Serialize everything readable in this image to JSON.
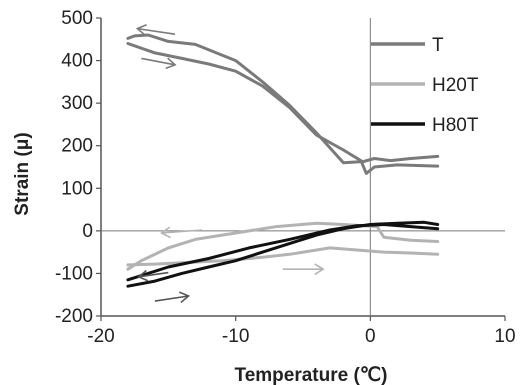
{
  "chart_data": {
    "type": "line",
    "title": "",
    "xlabel": "Temperature (℃)",
    "ylabel": "Strain (μ)",
    "xlim": [
      -20,
      10
    ],
    "ylim": [
      -200,
      500
    ],
    "x_ticks": [
      "-20",
      "-10",
      "0",
      "10"
    ],
    "y_ticks": [
      "-200",
      "-100",
      "0",
      "100",
      "200",
      "300",
      "400",
      "500"
    ],
    "grid": false,
    "legend_position": "top-right",
    "series": [
      {
        "name": "T",
        "color": "#7a7a7a",
        "cooling": [
          [
            5,
            175
          ],
          [
            3,
            170
          ],
          [
            1.5,
            165
          ],
          [
            0.3,
            170
          ],
          [
            -0.5,
            163
          ],
          [
            -2,
            160
          ],
          [
            -4,
            230
          ],
          [
            -6,
            295
          ],
          [
            -8,
            350
          ],
          [
            -10,
            400
          ],
          [
            -13,
            438
          ],
          [
            -15,
            445
          ],
          [
            -16.5,
            460
          ],
          [
            -17.5,
            458
          ],
          [
            -18,
            452
          ]
        ],
        "warming": [
          [
            -18,
            440
          ],
          [
            -16,
            418
          ],
          [
            -14,
            405
          ],
          [
            -12,
            392
          ],
          [
            -10,
            375
          ],
          [
            -8,
            340
          ],
          [
            -6,
            290
          ],
          [
            -4,
            225
          ],
          [
            -2,
            190
          ],
          [
            -0.7,
            165
          ],
          [
            -0.3,
            135
          ],
          [
            0.3,
            150
          ],
          [
            2,
            155
          ],
          [
            5,
            152
          ]
        ]
      },
      {
        "name": "H20T",
        "color": "#b3b3b3",
        "cooling": [
          [
            5,
            -25
          ],
          [
            3,
            -22
          ],
          [
            1,
            -15
          ],
          [
            0.5,
            10
          ],
          [
            -2,
            15
          ],
          [
            -4,
            18
          ],
          [
            -7,
            10
          ],
          [
            -10,
            -5
          ],
          [
            -13,
            -20
          ],
          [
            -15,
            -40
          ],
          [
            -17,
            -70
          ],
          [
            -18,
            -90
          ]
        ],
        "warming": [
          [
            -18,
            -80
          ],
          [
            -16,
            -78
          ],
          [
            -14,
            -75
          ],
          [
            -11,
            -70
          ],
          [
            -8,
            -62
          ],
          [
            -6,
            -55
          ],
          [
            -3,
            -40
          ],
          [
            -1,
            -45
          ],
          [
            1,
            -50
          ],
          [
            3,
            -52
          ],
          [
            5,
            -55
          ]
        ]
      },
      {
        "name": "H80T",
        "color": "#111111",
        "cooling": [
          [
            5,
            5
          ],
          [
            3,
            10
          ],
          [
            1,
            15
          ],
          [
            -1,
            12
          ],
          [
            -3,
            2
          ],
          [
            -6,
            -20
          ],
          [
            -9,
            -40
          ],
          [
            -12,
            -65
          ],
          [
            -15,
            -85
          ],
          [
            -17,
            -105
          ],
          [
            -18,
            -115
          ]
        ],
        "warming": [
          [
            -18,
            -130
          ],
          [
            -16,
            -118
          ],
          [
            -14,
            -100
          ],
          [
            -12,
            -85
          ],
          [
            -10,
            -70
          ],
          [
            -8,
            -50
          ],
          [
            -6,
            -30
          ],
          [
            -4,
            -10
          ],
          [
            -2,
            5
          ],
          [
            0,
            15
          ],
          [
            2,
            18
          ],
          [
            4,
            20
          ],
          [
            5,
            15
          ]
        ]
      }
    ],
    "annotations": [
      {
        "type": "arrow",
        "direction": "cooling",
        "color": "#7a7a7a",
        "from": [
          -14.5,
          462
        ],
        "to": [
          -17.3,
          475
        ]
      },
      {
        "type": "arrow",
        "direction": "warming",
        "color": "#7a7a7a",
        "from": [
          -17,
          405
        ],
        "to": [
          -14.5,
          390
        ]
      },
      {
        "type": "arrow",
        "direction": "cooling",
        "color": "#b3b3b3",
        "from": [
          -12.5,
          2
        ],
        "to": [
          -15.5,
          -5
        ]
      },
      {
        "type": "arrow",
        "direction": "warming",
        "color": "#b3b3b3",
        "from": [
          -6.5,
          -90
        ],
        "to": [
          -3.5,
          -90
        ]
      },
      {
        "type": "arrow",
        "direction": "cooling",
        "color": "#555555",
        "from": [
          -15,
          -98
        ],
        "to": [
          -17.2,
          -108
        ]
      },
      {
        "type": "arrow",
        "direction": "warming",
        "color": "#555555",
        "from": [
          -16,
          -165
        ],
        "to": [
          -13.5,
          -153
        ]
      }
    ]
  }
}
